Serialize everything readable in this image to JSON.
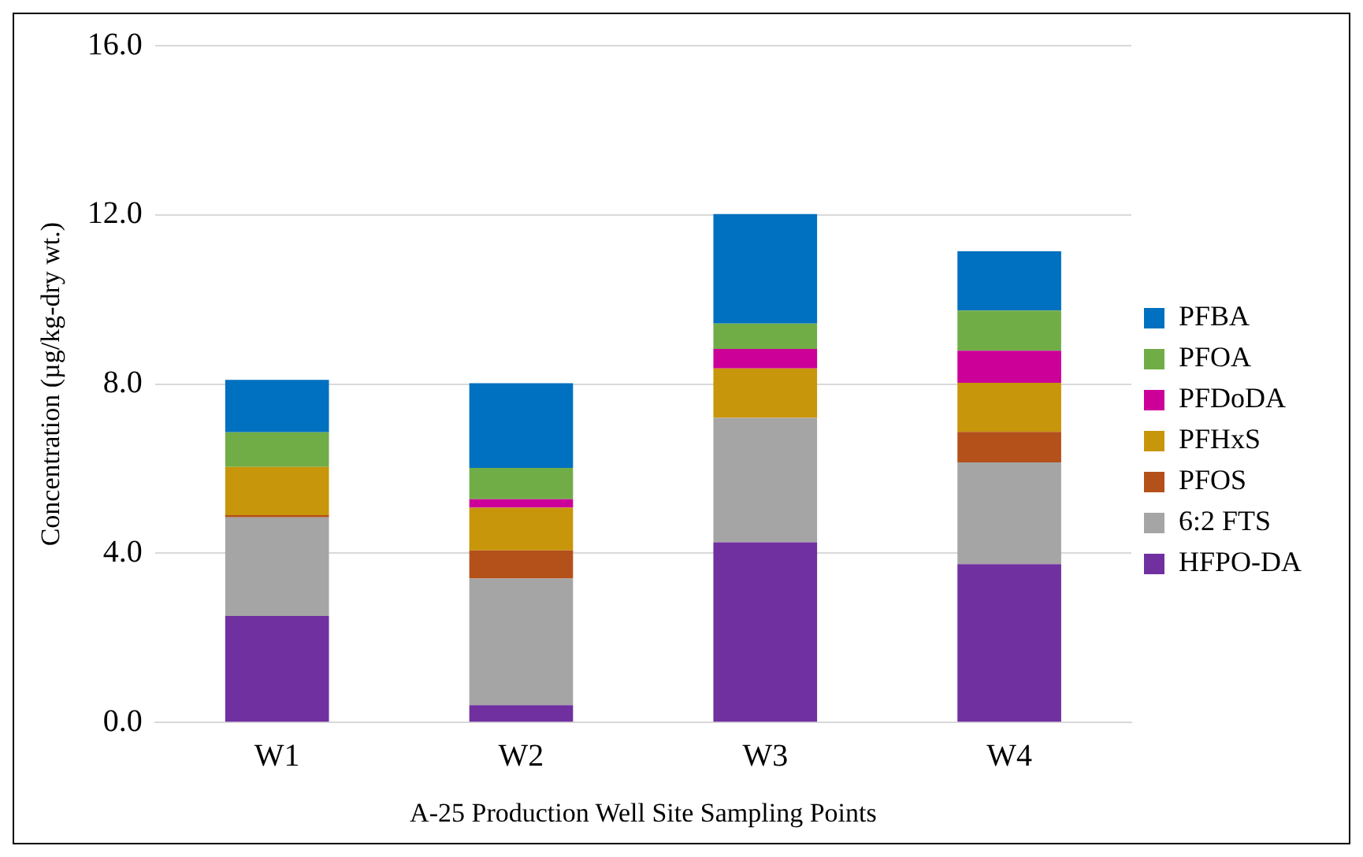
{
  "chart_data": {
    "type": "bar",
    "stacked": true,
    "xlabel": "A-25 Production Well Site Sampling Points",
    "ylabel": "Concentration (µg/kg-dry wt.)",
    "categories": [
      "W1",
      "W2",
      "W3",
      "W4"
    ],
    "series": [
      {
        "name": "HFPO-DA",
        "color": "#7030a0",
        "values": [
          2.52,
          0.41,
          4.26,
          3.74
        ]
      },
      {
        "name": "6:2 FTS",
        "color": "#a5a5a5",
        "values": [
          2.33,
          2.99,
          2.94,
          2.41
        ]
      },
      {
        "name": "PFOS",
        "color": "#b4501a",
        "values": [
          0.05,
          0.67,
          0,
          0.72
        ]
      },
      {
        "name": "PFHxS",
        "color": "#c8960a",
        "values": [
          1.14,
          1.01,
          1.17,
          1.16
        ]
      },
      {
        "name": "PFDoDA",
        "color": "#cc0099",
        "values": [
          0,
          0.2,
          0.46,
          0.76
        ]
      },
      {
        "name": "PFOA",
        "color": "#70ad47",
        "values": [
          0.82,
          0.74,
          0.6,
          0.95
        ]
      },
      {
        "name": "PFBA",
        "color": "#0070c0",
        "values": [
          1.24,
          2.0,
          2.59,
          1.4
        ]
      }
    ],
    "ylim": [
      0,
      16
    ],
    "yticks": [
      {
        "value": 0,
        "label": "0.0"
      },
      {
        "value": 4,
        "label": "4.0"
      },
      {
        "value": 8,
        "label": "8.0"
      },
      {
        "value": 12,
        "label": "12.0"
      },
      {
        "value": 16,
        "label": "16.0"
      }
    ],
    "grid": "y",
    "legend": "right"
  }
}
